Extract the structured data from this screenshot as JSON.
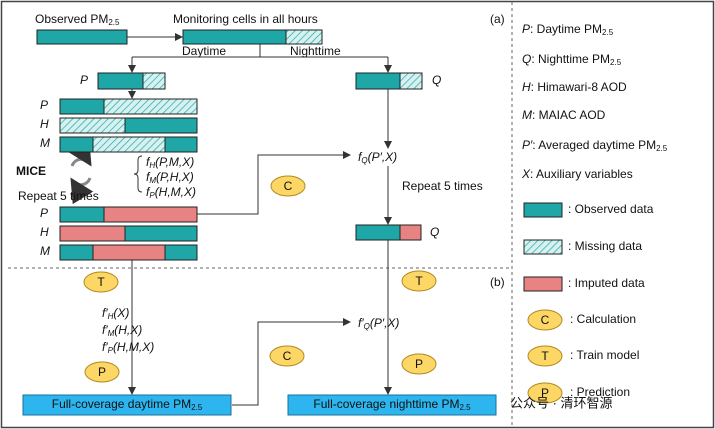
{
  "panel_labels": [
    "(a)",
    "(b)"
  ],
  "top": {
    "observed": {
      "label": "Observed PM",
      "sub": "2.5"
    },
    "monitoring": "Monitoring cells in all hours",
    "daytime": "Daytime",
    "nighttime": "Nighttime"
  },
  "p_label": "P",
  "q_label": "Q",
  "row_labels_missing": [
    "P",
    "H",
    "M"
  ],
  "row_labels_imputed": [
    "P",
    "H",
    "M"
  ],
  "q_label_imputed": "Q",
  "mice": "MICE",
  "repeat_left": "Repeat 5 times",
  "repeat_right": "Repeat 5 times",
  "imputation_functions": [
    {
      "name": "f",
      "sub": "H",
      "args": "(P,M,X)"
    },
    {
      "name": "f",
      "sub": "M",
      "args": "(P,H,X)"
    },
    {
      "name": "f",
      "sub": "P",
      "args": "(H,M,X)"
    }
  ],
  "night_function": {
    "name": "f",
    "sub": "Q",
    "args": "(P′,X)"
  },
  "train_functions": [
    {
      "name": "f′",
      "sub": "H",
      "args": "(X)"
    },
    {
      "name": "f′",
      "sub": "M",
      "args": "(H,X)"
    },
    {
      "name": "f′",
      "sub": "P",
      "args": "(H,M,X)"
    }
  ],
  "night_train_function": {
    "name": "f′",
    "sub": "Q",
    "args": "(P′,X)"
  },
  "diagram_badges": [
    "C",
    "T",
    "P",
    "C",
    "T",
    "P"
  ],
  "outputs": [
    {
      "label": "Full-coverage daytime PM",
      "sub": "2.5"
    },
    {
      "label": "Full-coverage nighttime PM",
      "sub": "2.5"
    }
  ],
  "legend_symbols": [
    {
      "symbol": "P",
      "label": ": Daytime PM",
      "sub": "2.5"
    },
    {
      "symbol": "Q",
      "label": ": Nighttime PM",
      "sub": "2.5"
    },
    {
      "symbol": "H",
      "label": ": Himawari-8 AOD"
    },
    {
      "symbol": "M",
      "label": ": MAIAC AOD"
    },
    {
      "symbol": "P′",
      "label": ": Averaged daytime PM",
      "sub": "2.5"
    },
    {
      "symbol": "X",
      "label": ": Auxiliary variables"
    }
  ],
  "legend_swatches": [
    ": Observed data",
    ": Missing data",
    ": Imputed data"
  ],
  "legend_badges": [
    {
      "badge": "C",
      "label": ": Calculation"
    },
    {
      "badge": "T",
      "label": ": Train model"
    },
    {
      "badge": "P",
      "label": ": Prediction"
    }
  ],
  "watermark": "公众号 · 清环智源"
}
